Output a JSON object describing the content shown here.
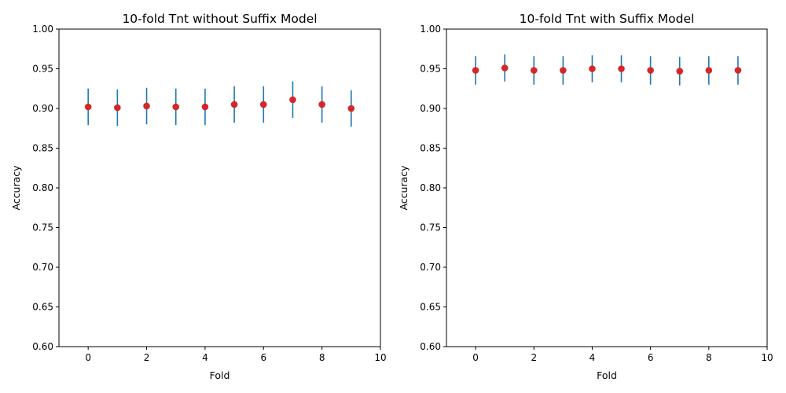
{
  "chart_data": [
    {
      "type": "scatter",
      "title": "10-fold Tnt without Suffix Model",
      "xlabel": "Fold",
      "ylabel": "Accuracy",
      "xlim": [
        -1,
        10
      ],
      "ylim": [
        0.6,
        1.0
      ],
      "xticks": [
        0,
        2,
        4,
        6,
        8,
        10
      ],
      "xtick_labels": [
        "0",
        "2",
        "4",
        "6",
        "8",
        "10"
      ],
      "yticks": [
        0.6,
        0.65,
        0.7,
        0.75,
        0.8,
        0.85,
        0.9,
        0.95,
        1.0
      ],
      "ytick_labels": [
        "0.60",
        "0.65",
        "0.70",
        "0.75",
        "0.80",
        "0.85",
        "0.90",
        "0.95",
        "1.00"
      ],
      "grid": false,
      "marker_color": "#d62728",
      "errorbar_color": "#1f77b4",
      "x": [
        0,
        1,
        2,
        3,
        4,
        5,
        6,
        7,
        8,
        9
      ],
      "y": [
        0.902,
        0.901,
        0.903,
        0.902,
        0.902,
        0.905,
        0.905,
        0.911,
        0.905,
        0.9
      ],
      "yerr": [
        0.023,
        0.023,
        0.023,
        0.023,
        0.023,
        0.023,
        0.023,
        0.023,
        0.023,
        0.023
      ]
    },
    {
      "type": "scatter",
      "title": "10-fold Tnt with Suffix Model",
      "xlabel": "Fold",
      "ylabel": "Accuracy",
      "xlim": [
        -1,
        10
      ],
      "ylim": [
        0.6,
        1.0
      ],
      "xticks": [
        0,
        2,
        4,
        6,
        8,
        10
      ],
      "xtick_labels": [
        "0",
        "2",
        "4",
        "6",
        "8",
        "10"
      ],
      "yticks": [
        0.6,
        0.65,
        0.7,
        0.75,
        0.8,
        0.85,
        0.9,
        0.95,
        1.0
      ],
      "ytick_labels": [
        "0.60",
        "0.65",
        "0.70",
        "0.75",
        "0.80",
        "0.85",
        "0.90",
        "0.95",
        "1.00"
      ],
      "grid": false,
      "marker_color": "#d62728",
      "errorbar_color": "#1f77b4",
      "x": [
        0,
        1,
        2,
        3,
        4,
        5,
        6,
        7,
        8,
        9
      ],
      "y": [
        0.948,
        0.951,
        0.948,
        0.948,
        0.95,
        0.95,
        0.948,
        0.947,
        0.948,
        0.948
      ],
      "yerr": [
        0.018,
        0.017,
        0.018,
        0.018,
        0.017,
        0.017,
        0.018,
        0.018,
        0.018,
        0.018
      ]
    }
  ]
}
